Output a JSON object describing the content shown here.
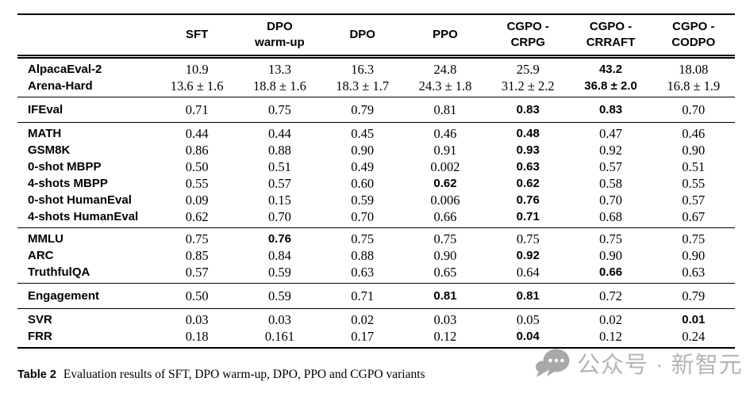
{
  "table": {
    "headers": [
      "SFT",
      "DPO\nwarm-up",
      "DPO",
      "PPO",
      "CGPO -\nCRPG",
      "CGPO -\nCRRAFT",
      "CGPO -\nCODPO"
    ],
    "groups": [
      {
        "rows": [
          {
            "label": "AlpacaEval-2",
            "values": [
              "10.9",
              "13.3",
              "16.3",
              "24.8",
              "25.9",
              "43.2",
              "18.08"
            ],
            "bold": [
              5
            ]
          },
          {
            "label": "Arena-Hard",
            "values": [
              "13.6 ± 1.6",
              "18.8 ± 1.6",
              "18.3 ± 1.7",
              "24.3 ± 1.8",
              "31.2 ± 2.2",
              "36.8 ± 2.0",
              "16.8 ± 1.9"
            ],
            "bold": [
              5
            ]
          }
        ]
      },
      {
        "rows": [
          {
            "label": "IFEval",
            "values": [
              "0.71",
              "0.75",
              "0.79",
              "0.81",
              "0.83",
              "0.83",
              "0.70"
            ],
            "bold": [
              4,
              5
            ]
          }
        ]
      },
      {
        "rows": [
          {
            "label": "MATH",
            "values": [
              "0.44",
              "0.44",
              "0.45",
              "0.46",
              "0.48",
              "0.47",
              "0.46"
            ],
            "bold": [
              4
            ]
          },
          {
            "label": "GSM8K",
            "values": [
              "0.86",
              "0.88",
              "0.90",
              "0.91",
              "0.93",
              "0.92",
              "0.90"
            ],
            "bold": [
              4
            ]
          },
          {
            "label": "0-shot MBPP",
            "values": [
              "0.50",
              "0.51",
              "0.49",
              "0.002",
              "0.63",
              "0.57",
              "0.51"
            ],
            "bold": [
              4
            ]
          },
          {
            "label": "4-shots MBPP",
            "values": [
              "0.55",
              "0.57",
              "0.60",
              "0.62",
              "0.62",
              "0.58",
              "0.55"
            ],
            "bold": [
              3,
              4
            ]
          },
          {
            "label": "0-shot HumanEval",
            "values": [
              "0.09",
              "0.15",
              "0.59",
              "0.006",
              "0.76",
              "0.70",
              "0.57"
            ],
            "bold": [
              4
            ]
          },
          {
            "label": "4-shots HumanEval",
            "values": [
              "0.62",
              "0.70",
              "0.70",
              "0.66",
              "0.71",
              "0.68",
              "0.67"
            ],
            "bold": [
              4
            ]
          }
        ]
      },
      {
        "rows": [
          {
            "label": "MMLU",
            "values": [
              "0.75",
              "0.76",
              "0.75",
              "0.75",
              "0.75",
              "0.75",
              "0.75"
            ],
            "bold": [
              1
            ]
          },
          {
            "label": "ARC",
            "values": [
              "0.85",
              "0.84",
              "0.88",
              "0.90",
              "0.92",
              "0.90",
              "0.90"
            ],
            "bold": [
              4
            ]
          },
          {
            "label": "TruthfulQA",
            "values": [
              "0.57",
              "0.59",
              "0.63",
              "0.65",
              "0.64",
              "0.66",
              "0.63"
            ],
            "bold": [
              5
            ]
          }
        ]
      },
      {
        "rows": [
          {
            "label": "Engagement",
            "values": [
              "0.50",
              "0.59",
              "0.71",
              "0.81",
              "0.81",
              "0.72",
              "0.79"
            ],
            "bold": [
              3,
              4
            ]
          }
        ]
      },
      {
        "rows": [
          {
            "label": "SVR",
            "values": [
              "0.03",
              "0.03",
              "0.02",
              "0.03",
              "0.05",
              "0.02",
              "0.01"
            ],
            "bold": [
              6
            ]
          },
          {
            "label": "FRR",
            "values": [
              "0.18",
              "0.161",
              "0.17",
              "0.12",
              "0.04",
              "0.12",
              "0.24"
            ],
            "bold": [
              4
            ]
          }
        ]
      }
    ]
  },
  "caption": {
    "label": "Table 2",
    "text": "Evaluation results of SFT, DPO warm-up, DPO, PPO and CGPO variants"
  },
  "watermark": {
    "icon": "wechat-icon",
    "text": "公众号 · 新智元"
  },
  "colors": {
    "rule": "#000000",
    "text": "#000000",
    "watermark_text": "#b5b5b5",
    "watermark_icon": "#a8a8a8"
  }
}
